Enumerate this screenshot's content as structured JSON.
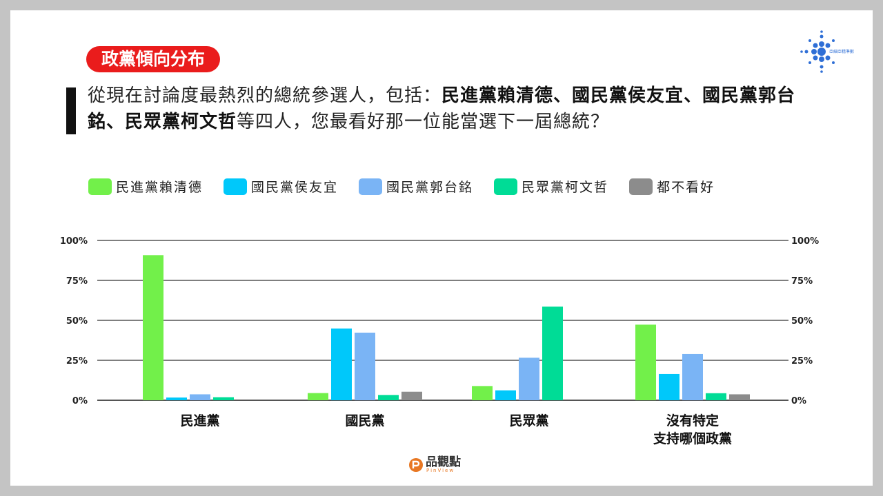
{
  "tag": "政黨傾向分布",
  "question": {
    "text_before": "從現在討論度最熱烈的總統參選人，包括：",
    "bold": "民進黨賴清德、國民黨侯友宜、國民黨郭台銘、民眾黨柯文哲",
    "text_after": "等四人，您最看好那一位能當選下一屆總統？"
  },
  "corner_logo_text": "亞細亞精準數據",
  "brand": {
    "name": "品觀點",
    "sub": "PinView"
  },
  "legend": [
    {
      "label": "民進黨賴清德",
      "color": "#72f04a"
    },
    {
      "label": "國民黨侯友宜",
      "color": "#00c8fa"
    },
    {
      "label": "國民黨郭台銘",
      "color": "#7ab4f5"
    },
    {
      "label": "民眾黨柯文哲",
      "color": "#00dc96"
    },
    {
      "label": "都不看好",
      "color": "#8c8c8c"
    }
  ],
  "chart_data": {
    "type": "bar",
    "categories": [
      "民進黨",
      "國民黨",
      "民眾黨",
      "沒有特定\n支持哪個政黨"
    ],
    "series": [
      {
        "name": "民進黨賴清德",
        "values": [
          90.8,
          4.5,
          8.9,
          47.3
        ]
      },
      {
        "name": "國民黨侯友宜",
        "values": [
          1.7,
          44.9,
          6.2,
          16.4
        ]
      },
      {
        "name": "國民黨郭台銘",
        "values": [
          3.7,
          42.3,
          26.6,
          28.9
        ]
      },
      {
        "name": "民眾黨柯文哲",
        "values": [
          1.9,
          3.3,
          58.6,
          4.4
        ]
      },
      {
        "name": "都不看好",
        "values": [
          0,
          5.3,
          0,
          3.7
        ]
      }
    ],
    "yticks": [
      "0%",
      "25%",
      "50%",
      "75%",
      "100%"
    ],
    "ylim": [
      0,
      100
    ],
    "grid": true,
    "legend_position": "top"
  }
}
